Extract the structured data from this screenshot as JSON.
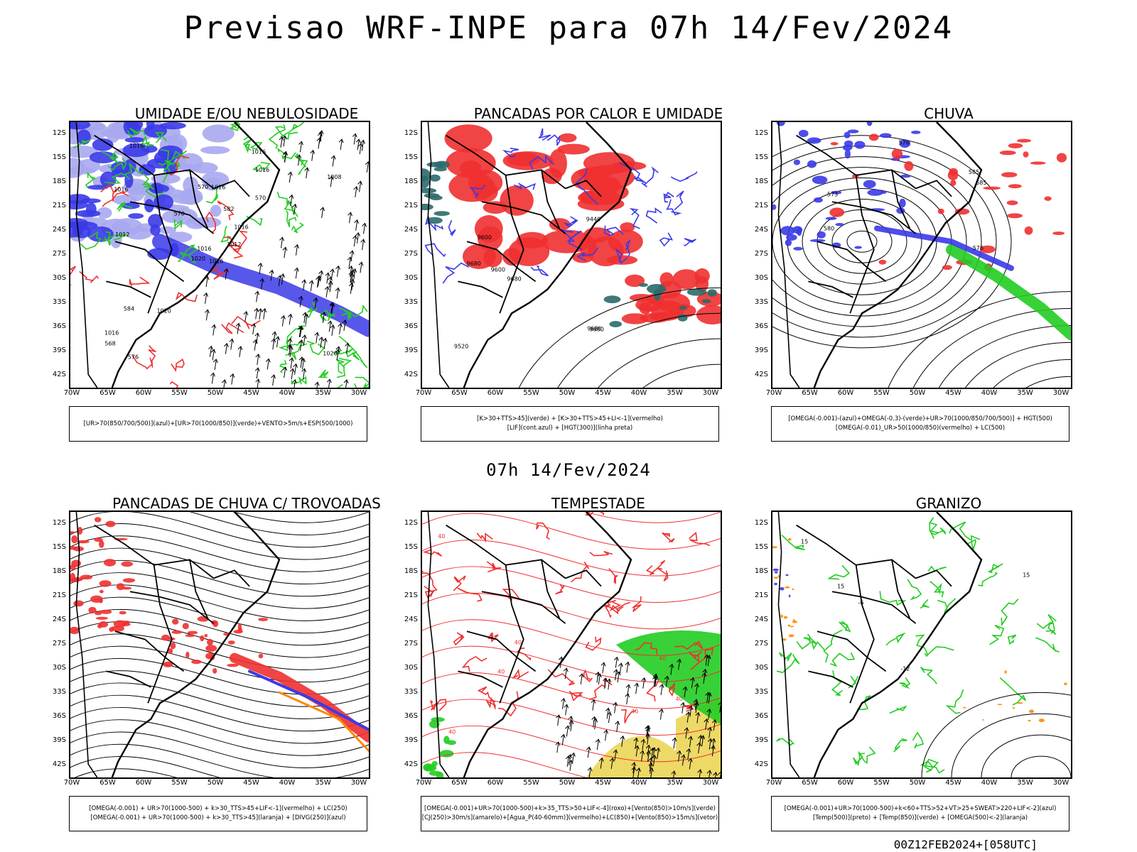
{
  "title": "Previsao WRF-INPE  para 07h 14/Fev/2024",
  "mid_date": "07h 14/Fev/2024",
  "footer": "00Z12FEB2024+[058UTC]",
  "axes": {
    "lat_ticks": [
      "12S",
      "15S",
      "18S",
      "21S",
      "24S",
      "27S",
      "30S",
      "33S",
      "36S",
      "39S",
      "42S"
    ],
    "lon_ticks": [
      "70W",
      "65W",
      "60W",
      "55W",
      "50W",
      "45W",
      "40W",
      "35W",
      "30W"
    ]
  },
  "colors": {
    "blue": "#3a3ae8",
    "light_blue": "#a8a8f0",
    "green": "#22cc22",
    "red": "#f03030",
    "orange": "#ff8800",
    "teal": "#2a6a6a",
    "yellow": "#e8d040",
    "black": "#000000"
  },
  "panels": [
    {
      "title": "UMIDADE E/OU NEBULOSIDADE",
      "legend": [
        "[UR>70(850/700/500)](azul)+[UR>70(1000/850)](verde)+VENTO>5m/s+ESP(500/1000)"
      ],
      "contour_labels": [
        "1016",
        "1016",
        "1016",
        "1016",
        "1016",
        "1020",
        "1016",
        "1016",
        "1016",
        "1012",
        "1016",
        "1020",
        "1012",
        "1008",
        "1020",
        "570",
        "576",
        "570",
        "582",
        "584",
        "570",
        "568"
      ]
    },
    {
      "title": "PANCADAS POR CALOR E UMIDADE",
      "legend": [
        "[K>30+TTS>45](verde)  +  [K>30+TTS>45+LI<-1](vermelho)",
        "[LIF](cont.azul)  +  [HGT(300)](linha preta)"
      ],
      "contour_labels": [
        "9680",
        "9680",
        "9680",
        "9680",
        "9600",
        "9600",
        "9520",
        "9440"
      ]
    },
    {
      "title": "CHUVA",
      "legend": [
        "[OMEGA(-0.001)-(azul)+OMEGA(-0.3)-(verde)+UR>70(1000/850/700/500)]  +  HGT(500)",
        "[OMEGA(-0.01)_UR>50(1000/850)(vermelho)  +  LC(500)"
      ],
      "contour_labels": [
        "585",
        "576",
        "585",
        "573",
        "576",
        "580"
      ]
    },
    {
      "title": "PANCADAS DE CHUVA C/ TROVOADAS",
      "legend": [
        "[OMEGA(-0.001) + UR>70(1000-500) + k>30_TTS>45+LIF<-1](vermelho) + LC(250)",
        "[OMEGA(-0.001) + UR>70(1000-500) + k>30_TTS>45](laranja) + [DIVG(250)](azul)"
      ],
      "contour_labels": []
    },
    {
      "title": "TEMPESTADE",
      "legend": [
        "[OMEGA(-0.001)+UR>70(1000-500)+k>35_TTS>50+LIF<-4](roxo)+[Vento(850)>10m/s](verde)",
        "[CJ(250)>30m/s](amarelo)+[Agua_P(40-60mm)](vermelho)+LC(850)+[Vento(850)>15m/s](vetor)"
      ],
      "contour_labels": [
        "40",
        "40",
        "40",
        "40",
        "40",
        "40",
        "40"
      ]
    },
    {
      "title": "GRANIZO",
      "legend": [
        "[OMEGA(-0.001)+UR>70(1000-500)+k<60+TTS>52+VT>25+SWEAT>220+LIF<-2](azul)",
        "[Temp(500)](preto) + [Temp(850)](verde) + [OMEGA(500)<-2](laranja)"
      ],
      "contour_labels": [
        "15",
        "15",
        "15",
        "-6",
        "-12"
      ]
    }
  ]
}
